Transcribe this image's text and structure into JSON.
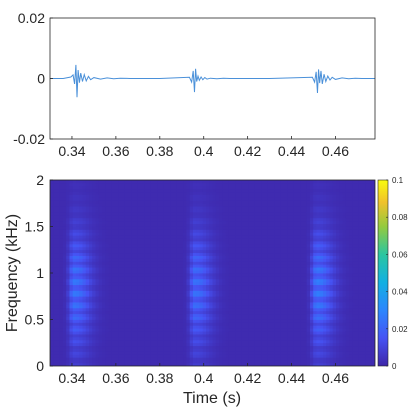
{
  "chart_data": [
    {
      "type": "line",
      "title": "",
      "xlabel": "",
      "ylabel": "",
      "xlim": [
        0.33,
        0.478
      ],
      "ylim": [
        -0.02,
        0.02
      ],
      "xticks": [
        "0.34",
        "0.36",
        "0.38",
        "0.4",
        "0.42",
        "0.44",
        "0.46"
      ],
      "yticks": [
        "0.02",
        "0",
        "-0.02"
      ],
      "line_color": "#4a90d9",
      "grid": false,
      "series": [
        {
          "x": [
            0.33,
            0.336,
            0.3395,
            0.3405,
            0.3412,
            0.3418,
            0.3423,
            0.3428,
            0.3434,
            0.344,
            0.3448,
            0.3456,
            0.3465,
            0.3475,
            0.3485,
            0.35,
            0.353,
            0.356,
            0.359,
            0.362,
            0.3665,
            0.38,
            0.3935,
            0.3945,
            0.3952,
            0.3958,
            0.3963,
            0.3968,
            0.3974,
            0.398,
            0.3988,
            0.3996,
            0.4005,
            0.4015,
            0.403,
            0.406,
            0.409,
            0.412,
            0.4165,
            0.43,
            0.4495,
            0.4505,
            0.4512,
            0.4518,
            0.4523,
            0.4528,
            0.4534,
            0.454,
            0.4548,
            0.4556,
            0.4565,
            0.4575,
            0.4585,
            0.46,
            0.463,
            0.466,
            0.469,
            0.472,
            0.478
          ],
          "y": [
            0,
            0,
            0.0005,
            0.0012,
            -0.0018,
            0.0045,
            -0.0062,
            0.0028,
            -0.0014,
            0.0018,
            -0.001,
            0.0013,
            -0.0008,
            0.0007,
            -0.0004,
            0.0003,
            -0.0002,
            0.0002,
            -0.0001,
            0.0001,
            0,
            0,
            0.0004,
            -0.0012,
            0.0025,
            -0.0045,
            0.0032,
            -0.001,
            0.0008,
            -0.0006,
            0.0005,
            -0.0004,
            0.0003,
            -0.0002,
            0.0001,
            -0.0001,
            0.0001,
            0,
            0,
            0,
            0.0004,
            -0.0012,
            0.0022,
            -0.0048,
            0.003,
            -0.0015,
            0.0025,
            -0.0018,
            0.0014,
            -0.001,
            0.0008,
            -0.0005,
            0.0004,
            -0.0003,
            0.0002,
            -0.0001,
            0.0001,
            0,
            0
          ]
        }
      ]
    },
    {
      "type": "heatmap",
      "title": "",
      "xlabel": "Time (s)",
      "ylabel": "Frequency (kHz)",
      "xlim": [
        0.33,
        0.478
      ],
      "ylim": [
        0,
        2
      ],
      "xticks": [
        "0.34",
        "0.36",
        "0.38",
        "0.4",
        "0.42",
        "0.44",
        "0.46"
      ],
      "yticks": [
        "2",
        "1.5",
        "1",
        "0.5",
        "0"
      ],
      "colormap": "parula",
      "clim": [
        0,
        0.1
      ],
      "colorbar_ticks": [
        "0.1",
        "0.08",
        "0.06",
        "0.04",
        "0.02",
        "0"
      ],
      "events": [
        {
          "onset_s": 0.341,
          "peak_freq_khz": 0.85,
          "peak_value": 0.028
        },
        {
          "onset_s": 0.396,
          "peak_freq_khz": 0.85,
          "peak_value": 0.026
        },
        {
          "onset_s": 0.4515,
          "peak_freq_khz": 0.85,
          "peak_value": 0.03
        }
      ],
      "background_value": 0.0015
    }
  ]
}
